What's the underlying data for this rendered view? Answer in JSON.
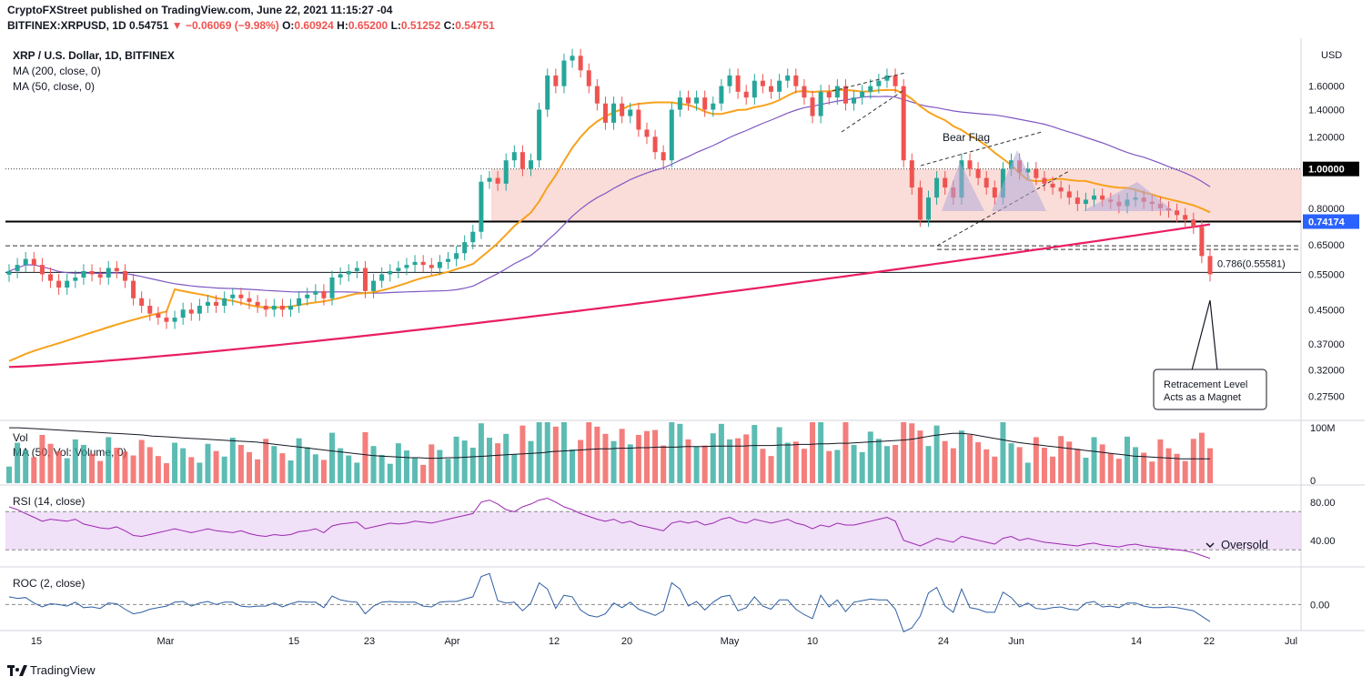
{
  "header": {
    "line1_prefix": "CryptoFXStreet published on TradingView.com, June 22, 2021 11:15:27 -04",
    "symbol": "BITFINEX:XRPUSD, 1D",
    "last": "0.54751",
    "change": "▼ −0.06069 (−9.98%)",
    "open_label": "O:",
    "open": "0.60924",
    "high_label": "H:",
    "high": "0.65200",
    "low_label": "L:",
    "low": "0.51252",
    "close_label": "C:",
    "close": "0.54751"
  },
  "legend": {
    "title": "XRP / U.S. Dollar, 1D, BITFINEX",
    "ma200": "MA (200, close, 0)",
    "ma50": "MA (50, close, 0)"
  },
  "panels": {
    "volume_label": "Vol",
    "volume_ma_label": "MA (50, Vol: Volume, 0)",
    "rsi_label": "RSI (14, close)",
    "roc_label": "ROC (2, close)"
  },
  "footer": {
    "brand": "TradingView"
  },
  "colors": {
    "up": "#26a69a",
    "down": "#ef5350",
    "ma50": "#f7a21b",
    "ma200": "#e91e63",
    "ma100": "#7e57c2",
    "zone": "#f8c9c4",
    "rsi": "#9c27b0",
    "roc": "#2f5fa3"
  },
  "chart_data": {
    "type": "candlestick",
    "title": "XRP / U.S. Dollar, 1D, BITFINEX",
    "currency": "USD",
    "y_scale": "log",
    "ylim": [
      0.24,
      2.1
    ],
    "price_ticks": [
      {
        "value": 1.6,
        "label": "1.60000"
      },
      {
        "value": 1.4,
        "label": "1.40000"
      },
      {
        "value": 1.2,
        "label": "1.20000"
      },
      {
        "value": 0.8,
        "label": "0.80000"
      },
      {
        "value": 0.65,
        "label": "0.65000"
      },
      {
        "value": 0.55,
        "label": "0.55000"
      },
      {
        "value": 0.45,
        "label": "0.45000"
      },
      {
        "value": 0.37,
        "label": "0.37000"
      },
      {
        "value": 0.32,
        "label": "0.32000"
      },
      {
        "value": 0.275,
        "label": "0.27500"
      }
    ],
    "price_badges": [
      {
        "value": 1.0,
        "label": "1.00000",
        "style": "black"
      },
      {
        "value": 0.74174,
        "label": "0.74174",
        "style": "blue"
      }
    ],
    "unit_label": "USD",
    "x_ticks": [
      "15",
      "Mar",
      "15",
      "23",
      "Apr",
      "12",
      "20",
      "May",
      "10",
      "24",
      "Jun",
      "14",
      "22",
      "Jul"
    ],
    "fib_label": "0.786(0.55581)",
    "fib_level": 0.55581,
    "support_level": 0.74174,
    "resistance_level": 1.0,
    "zone": [
      0.74174,
      1.0
    ],
    "lower_dashed_level": 0.64,
    "annotations": {
      "bear_flag": "Bear Flag",
      "magnet_line1": "Retracement Level",
      "magnet_line2": "Acts as a Magnet",
      "oversold": "Oversold"
    },
    "closes": [
      0.56,
      0.58,
      0.6,
      0.58,
      0.55,
      0.53,
      0.51,
      0.53,
      0.54,
      0.56,
      0.55,
      0.54,
      0.57,
      0.56,
      0.53,
      0.48,
      0.46,
      0.44,
      0.43,
      0.42,
      0.43,
      0.45,
      0.44,
      0.46,
      0.47,
      0.46,
      0.48,
      0.49,
      0.48,
      0.47,
      0.46,
      0.45,
      0.46,
      0.45,
      0.46,
      0.48,
      0.49,
      0.5,
      0.48,
      0.54,
      0.55,
      0.56,
      0.57,
      0.5,
      0.53,
      0.55,
      0.56,
      0.57,
      0.58,
      0.59,
      0.58,
      0.57,
      0.59,
      0.6,
      0.62,
      0.66,
      0.7,
      0.93,
      0.95,
      0.92,
      1.05,
      1.1,
      1.0,
      1.05,
      1.4,
      1.7,
      1.6,
      1.85,
      1.9,
      1.75,
      1.6,
      1.45,
      1.3,
      1.45,
      1.35,
      1.4,
      1.25,
      1.2,
      1.1,
      1.05,
      1.4,
      1.5,
      1.45,
      1.5,
      1.4,
      1.45,
      1.6,
      1.7,
      1.55,
      1.5,
      1.65,
      1.6,
      1.55,
      1.65,
      1.7,
      1.6,
      1.5,
      1.35,
      1.55,
      1.5,
      1.6,
      1.45,
      1.5,
      1.55,
      1.6,
      1.65,
      1.7,
      1.6,
      1.05,
      0.9,
      0.75,
      0.85,
      0.95,
      0.9,
      0.85,
      1.05,
      1.0,
      0.95,
      0.9,
      0.85,
      1.0,
      1.05,
      0.98,
      1.0,
      0.95,
      0.92,
      0.9,
      0.88,
      0.85,
      0.82,
      0.84,
      0.86,
      0.84,
      0.83,
      0.81,
      0.84,
      0.85,
      0.83,
      0.82,
      0.8,
      0.79,
      0.77,
      0.75,
      0.72,
      0.61,
      0.55
    ],
    "volume_ma": [
      100,
      100,
      99,
      98,
      97,
      96,
      95,
      94,
      93,
      92,
      91,
      90,
      89,
      88,
      87,
      85,
      84,
      83,
      82,
      81,
      80,
      79,
      78,
      77,
      76,
      75,
      74,
      72,
      70,
      68,
      66,
      64,
      62,
      60,
      58,
      56,
      54,
      52,
      50,
      49,
      48,
      47,
      46,
      46,
      45,
      45,
      46,
      46,
      47,
      48,
      49,
      50,
      51,
      52,
      53,
      54,
      55,
      57,
      58,
      59,
      60,
      61,
      62,
      62,
      63,
      63,
      64,
      64,
      65,
      65,
      65,
      66,
      66,
      66,
      67,
      67,
      67,
      67,
      68,
      68,
      68,
      69,
      69,
      70,
      70,
      71,
      71,
      72,
      72,
      73,
      74,
      75,
      76,
      77,
      78,
      80,
      83,
      86,
      88,
      90,
      90,
      88,
      85,
      82,
      79,
      76,
      73,
      71,
      69,
      67,
      65,
      63,
      61,
      59,
      57,
      55,
      53,
      51,
      49,
      48,
      47,
      46,
      45,
      44,
      44,
      44,
      44
    ],
    "rsi": [
      75,
      72,
      68,
      64,
      60,
      62,
      61,
      60,
      62,
      57,
      55,
      53,
      52,
      54,
      50,
      45,
      44,
      46,
      48,
      50,
      52,
      50,
      48,
      50,
      52,
      50,
      49,
      48,
      50,
      47,
      45,
      44,
      46,
      45,
      46,
      49,
      50,
      52,
      48,
      55,
      57,
      58,
      59,
      52,
      54,
      56,
      58,
      57,
      58,
      60,
      59,
      58,
      60,
      62,
      64,
      66,
      68,
      80,
      82,
      78,
      72,
      70,
      75,
      78,
      82,
      84,
      80,
      75,
      72,
      68,
      65,
      62,
      60,
      62,
      58,
      60,
      56,
      54,
      52,
      50,
      58,
      60,
      58,
      60,
      56,
      58,
      62,
      64,
      60,
      58,
      62,
      60,
      58,
      60,
      62,
      58,
      56,
      52,
      56,
      54,
      58,
      56,
      56,
      58,
      60,
      62,
      64,
      60,
      40,
      37,
      34,
      38,
      42,
      40,
      38,
      44,
      42,
      40,
      38,
      36,
      42,
      44,
      40,
      42,
      40,
      38,
      37,
      36,
      35,
      34,
      36,
      37,
      35,
      34,
      33,
      35,
      36,
      34,
      33,
      32,
      31,
      30,
      29,
      27,
      24,
      21
    ],
    "roc": [
      10,
      8,
      9,
      2,
      -3,
      1,
      0,
      -2,
      3,
      -4,
      -3,
      -5,
      2,
      1,
      -6,
      -12,
      -10,
      -6,
      -4,
      -2,
      3,
      4,
      -2,
      2,
      4,
      0,
      3,
      3,
      -2,
      -3,
      -2,
      -2,
      2,
      -3,
      1,
      4,
      3,
      3,
      -4,
      11,
      6,
      4,
      3,
      -12,
      -2,
      3,
      4,
      3,
      3,
      3,
      -2,
      -3,
      3,
      4,
      4,
      7,
      10,
      36,
      40,
      5,
      2,
      3,
      -8,
      2,
      28,
      20,
      -5,
      12,
      10,
      -7,
      -14,
      -16,
      -12,
      2,
      -4,
      3,
      -6,
      -10,
      -14,
      -8,
      28,
      20,
      -2,
      4,
      -7,
      3,
      10,
      12,
      -8,
      -4,
      10,
      -2,
      -6,
      6,
      6,
      -6,
      -13,
      -18,
      12,
      -3,
      6,
      -9,
      3,
      5,
      7,
      6,
      6,
      -6,
      -35,
      -30,
      -15,
      15,
      22,
      -2,
      -10,
      20,
      -4,
      -6,
      -10,
      -10,
      16,
      9,
      -3,
      2,
      -5,
      -6,
      -4,
      -3,
      -6,
      -7,
      2,
      4,
      -3,
      -2,
      -4,
      2,
      2,
      -2,
      -4,
      -4,
      -3,
      -4,
      -6,
      -8,
      -15,
      -22
    ]
  }
}
